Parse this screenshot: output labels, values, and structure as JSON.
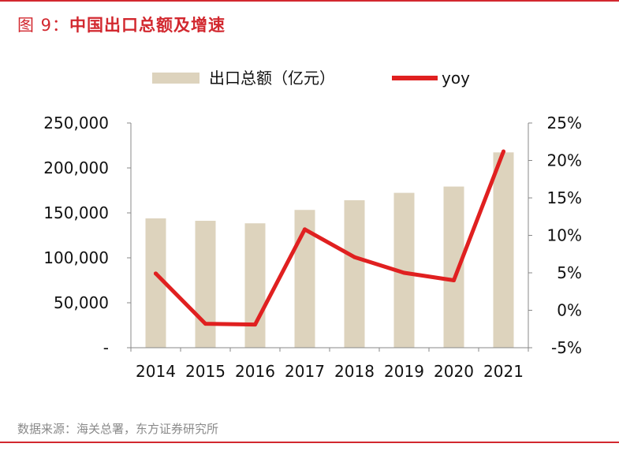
{
  "figure": {
    "title_prefix": "图 9：",
    "title_text": "中国出口总额及增速",
    "source": "数据来源：海关总署，东方证券研究所",
    "accent_color": "#d2282f"
  },
  "chart_data": {
    "type": "bar",
    "title": "中国出口总额及增速",
    "categories": [
      "2014",
      "2015",
      "2016",
      "2017",
      "2018",
      "2019",
      "2020",
      "2021"
    ],
    "series": [
      {
        "name": "出口总额（亿元）",
        "kind": "bar",
        "axis": "left",
        "color": "#ddd3bd",
        "values": [
          143900,
          141200,
          138400,
          153300,
          164100,
          172300,
          179300,
          217300
        ]
      },
      {
        "name": "yoy",
        "kind": "line",
        "axis": "right",
        "color": "#e02020",
        "values": [
          4.9,
          -1.8,
          -1.9,
          10.8,
          7.1,
          5.0,
          4.0,
          21.2
        ]
      }
    ],
    "y_left": {
      "min": 0,
      "max": 250000,
      "ticks": [
        0,
        50000,
        100000,
        150000,
        200000,
        250000
      ],
      "tick_labels": [
        "-",
        "50,000",
        "100,000",
        "150,000",
        "200,000",
        "250,000"
      ]
    },
    "y_right": {
      "min": -5,
      "max": 25,
      "ticks": [
        -5,
        0,
        5,
        10,
        15,
        20,
        25
      ],
      "tick_labels": [
        "-5%",
        "0%",
        "5%",
        "10%",
        "15%",
        "20%",
        "25%"
      ]
    },
    "legend": [
      {
        "label": "出口总额（亿元）",
        "kind": "bar",
        "color": "#ddd3bd"
      },
      {
        "label": "yoy",
        "kind": "line",
        "color": "#e02020"
      }
    ],
    "legend_position": "top-center",
    "grid": false
  }
}
